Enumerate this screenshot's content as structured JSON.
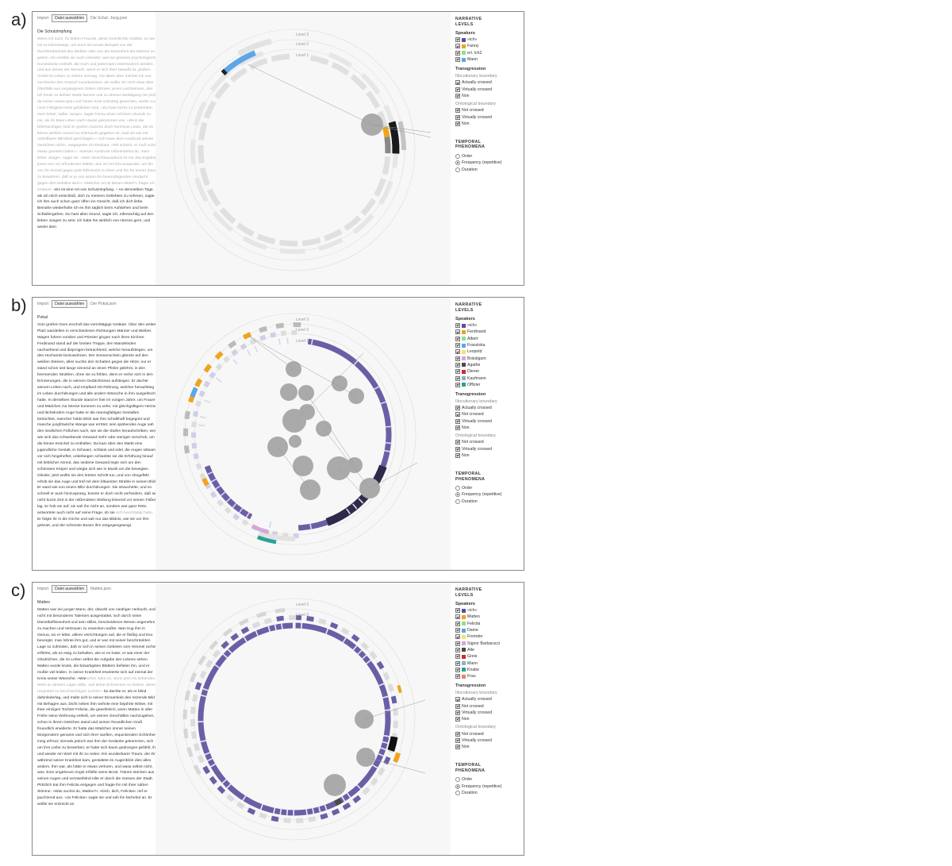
{
  "panels": [
    {
      "label": "a)",
      "import_label": "Import",
      "file_button": "Datei auswählen",
      "file_name": "Die Schut...fung.json",
      "text_title": "Die Schutzimpfung",
      "text_plain": "Wenn ich euch, ihr lieben Freunde, diese Geschichte erzähle, so tue ich es keineswegs, um euch ein neues Beispiel von der Durchtriebenheit des Weibes oder von der Dummheit der Männer zu geben. Ich erzähle sie euch vielmehr, weil sie gewisse psychologische Kunststücke enthüllt, die euch und jedermann interessieren werden und aus denen der Mensch, wenn er sich ihrer bewußt ist, großen Vorteil im Leben zu ziehen vermag. Vor allem aber möchte ich von vornherein den Vorwurf zurückweisen, als wollte ich mich etwa über Überfälle aus vergangenen Zeiten rühmen; jenes Leichtsinnes, den ich heute zu tiefster Seele bereue und zu dessen Betätigung mir jetzt, da meine Haare grau und meine Knie schlottrig geworden, weder Lust noch Fähigkeit mehr geblieben sind. »Du hast nichts zu befürchten, mein lieber, süßer Junge«, sagte Fanny eines schönen Abends zu mir, als ihr Mann eben nach Hause gekommen war, »denn die Eifersüchtigen sind im großen Ganzen doch harmlose Leute, die es keiner wirklich Grund zur Eifersucht gegeben ist, sind sie wie mit unheilbarer Blindheit geschlagen.« »Ich traue dem Ausdruck seines Gesichtes nicht«, entgegnete ich kleinlaut. »Mir scheint, er muß schon etwas gemerkt haben.« »Diesen Ausdruck mißverstehst du, mein lieber Junge«, sagte sie. »Sein Gesichtsausdruck ist nur das Ergebnis jenes von mir erfundenen Mittels, das ich bei ihm anwandte, um ihn von Ihr einmal gegen jede Eifersucht zu feien und ihn für immer davor zu bewahren, daß er je von einem ihn beunruhigenden Verdacht gegen dich befallen wird.« »Welcher Art ist dieses Mittel?« fragte ich erstaunt.",
      "text_highlight": "»Es ist",
      "text_after": " eine Art von Schutzimpfung. – An demselben Tage, als ich mich entschloß, dich zu meinem Geliebten zu nehmen, sagte ich ihm auch schon ganz offen ins Gesicht, daß ich dich liebe. Beinahe wiederholte ich es ihm täglich beim Aufstehen und beim Schlafengehen. Du hast allen Grund, sagte ich, eifersüchtig auf den lieben Jungen zu sein; ich habe ihn wirklich von Herzen gern, und weder dein",
      "levels": [
        "Level 3",
        "Level 2",
        "Level 1"
      ]
    },
    {
      "label": "b)",
      "import_label": "Import",
      "file_button": "Datei auswählen",
      "file_name": "Der Pokal.json",
      "text_title": "Pokal",
      "text_plain": "Vom großen Dom erscholl das vormittägige Geläute. Über den weiten Platz wandelten in verschiedenen Richtungen Männer und Weiber, Wagen fuhren vorüber und Priester gingen nach ihren Kirchen. Ferdinand stand auf der breiten Treppe, den Wandelnden nachsehend und diejenigen betrachtend, welche heraufstiegen, um den Hochamte beizuwohnen. Der Sonnenschein glänzte auf den weißen Steinen, alles suchte den Schatten gegen die Hitze; nur er stand schon seit lange sinnend an einen Pfeiler gelehnt, in den brennenden Strahlen, ohne sie zu fühlen, denn er verlor sich in den Erinnerungen, die in seinem Gedächtnisse aufstiegen. Er dachte seinem Leben nach, und empfand mit Rührung, welcher heraufstieg im Leben durchdrungen und alle andern Wünsche in ihm ausgelöscht hatte. In derselben Stunde stand er hier im vorigen Jahre, um Frauen und Mädchen zur Messe kommen zu sehn; mit gleichgültigem Herzen und lächelndem Auge hatte er die mannigfaltigen Gestalten betrachtet, mancher holde Blick war ihm schalkhaft begegnet und manche jungfräuliche Wange war errötet; sein spähendes Auge sah den niedlichen Füßchen nach, wie sie die Stufen heraufschritten, weil wie sich das schwebende Gewand mehr oder weniger verschob, um die feinen Knöchel zu enthüllen. Da kam über den Markt eine jugendliche Gestalt, in Schwarz, schlank und edel, die Augen sittsam vor sich hingeheftet, unbefangen schwebte sie die Erhöhung hinauf mit lieblicher Anmut, das seidene Gewand legte sich um den schönsten Körper und wiegte sich wie in Musik um die bewegten Glieder; jetzt wollte sie den letzten Schritt tun, und von ohngefähr erhob sie das Auge und traf mit dem bläuesten Strahle in seinen Blick. Er ward wie von einem Blitz durchdrungen. Sie strauchelte, und so schnell er auch hinzusprang, konnte er doch nicht verhindern, daß sie nicht kurze Zeit in der mißendsten Stellung knieend vor seinen Füßen lag. Er hob sie auf; sie sah ihn nicht an, sondern war ganz Röte, antwortete auch nicht auf seine Frage, ob sie",
      "text_highlight": "sich beschädigt habe.",
      "text_after": " Er folgte ihr in die Kirche und sah nur das Bildnis, wie sie vor ihm gekniet, und der schönste Busen ihm entgegengewogt.",
      "levels": [
        "Level 3",
        "Level 2",
        "Level 1"
      ]
    },
    {
      "label": "c)",
      "import_label": "Import",
      "file_button": "Datei auswählen",
      "file_name": "Matteo.json",
      "text_title": "Matteo",
      "text_plain": "Matteo war ein junger Mann, der, obwohl von niedriger Herkunft, und nicht mit besonderen Talenten ausgestattet, sich durch seine Dienstbeflissenheit und sein stilles, bescheidenes Wesen angenehm zu machen und Vertrauen zu erwecken wußte. Man trug ihm in Genua, wo er lebte, allerei Verrichtungen auf, die er fleißig und treu besorgte; man lohnte ihm gut, und er war mit seiner beschränkten Lage so zufrieden, daß er sich in seinen Gebeten vom Himmel nichts erflehte, als es ewig zu behalten, wie er es hatte; er war einer der Glücklichen, die im Leben selbst die Aufgabe des Lebens sehen. Matteo wurde krank, die bösartigsten Blattern befielen ihn, und er mußte viel leiden. In seiner Krankheit erweiterte sich auf einmal der Kreis seiner Wünsche. »Wie",
      "text_highlight": "schön wäre es, wenn jetzt ein liebendes Weib an deinem Lager säße, und deine Schmerzen zu lindern, deine Ungeduld zu beschwichtigen suchte!«",
      "text_after": " So dachte er, als er blind dahinlederlag, und malte sich in seiner Einsamkeit den reizende Bild mit Behagen aus. Dicht neben ihm wohnte eine bejahrte Witwe, mit ihrer einzigen Tochter Felicita, die gewöhnlich, wenn Matteo in aller Frühe seine Wohnung verließ, um seinen Geschäften nachzugehen, schon in ihrem Gärtchen stand und seinen freundlichen Gruß freundlich erwiderte. Er hatte das Mädchen immer seinen Morgenstern genannt und sich ihrer sanften, erquickenden Schönheit innig erfreut; niemals jedoch war ihm der Gedanke gekommen, sich um ihre Liebe zu bewerben; er hatte sich kaum gedrungen gefühlt, ihn und wieder ein Wort mit ihr zu reden. Ein wunderbarer Traum, der ihm während seiner Krankheit kam, gestaltete im Augenblick dies alles anders. Ihm war, als hätte er etwas verloren, und wasa selbst nicht, was. Eine ungeheure Angst erfüllte seine Brust. Tränen stürzten aus seinen Augen und verzweifelnd eilte er durch die Gassen der Stadt. Plötzlich trat ihm Felicita entgegen und fragte ihn mit ihrer süßen Stimme: »Was suchst du, Matteo?« »Dich, dich, Felicita!« rief er jauchzend aus. »Ja Felicita!« sagte sie und sah ihn lächelnd an. Er wollte sie entzückt an",
      "levels": [
        "Level 3",
        "Level 2",
        "Level 1"
      ]
    }
  ],
  "sidebar": {
    "narrative_heading_1": "NARRATIVE",
    "narrative_heading_2": "LEVELS",
    "speakers_label": "Speakers",
    "transgression_label": "Transgression",
    "illocutionary_label": "Illocutionary boundary",
    "ontological_label": "Ontological boundary",
    "temporal_heading_1": "TEMPORAL",
    "temporal_heading_2": "PHENOMENA",
    "illocutionary_options": [
      "Actually crossed",
      "Virtually crossed",
      "Non"
    ],
    "illocutionary_options_4": [
      "Actually crossed",
      "Not crossed",
      "Virtually crossed",
      "Non"
    ],
    "ontological_options": [
      "Not crossed",
      "Virtually crossed",
      "Non"
    ],
    "temporal_options": [
      "Order",
      "Frequency (repetitive)",
      "Duration"
    ],
    "temporal_selected": "Frequency (repetitive)"
  },
  "speakers_a": [
    {
      "name": "»ich«",
      "color": "#5b4e9c"
    },
    {
      "name": "Fanny",
      "color": "#f0a31b"
    },
    {
      "name": "erl. Ich2",
      "color": "#8fe08f"
    },
    {
      "name": "Mann",
      "color": "#5ea6e6"
    }
  ],
  "speakers_b": [
    {
      "name": "»ich«",
      "color": "#5b4e9c"
    },
    {
      "name": "Ferdinand",
      "color": "#f0a31b"
    },
    {
      "name": "Albert",
      "color": "#8fe08f"
    },
    {
      "name": "Franziska",
      "color": "#5ea6e6"
    },
    {
      "name": "Leopold",
      "color": "#f1e36c"
    },
    {
      "name": "Bräutigam",
      "color": "#d8a6d8"
    },
    {
      "name": "Agathe",
      "color": "#4a4a4a"
    },
    {
      "name": "Diener",
      "color": "#d22b2b"
    },
    {
      "name": "Kaufmann",
      "color": "#8fb0c8"
    },
    {
      "name": "Offizier",
      "color": "#2aa198"
    }
  ],
  "speakers_c": [
    {
      "name": "»ich«",
      "color": "#5b4e9c"
    },
    {
      "name": "Matteo",
      "color": "#f0a31b"
    },
    {
      "name": "Felicita",
      "color": "#8fe08f"
    },
    {
      "name": "Dame",
      "color": "#5ea6e6"
    },
    {
      "name": "Fremder",
      "color": "#f1e36c"
    },
    {
      "name": "Signor Barbarucci",
      "color": "#d8a6d8"
    },
    {
      "name": "Alte",
      "color": "#4a4a4a"
    },
    {
      "name": "Greis",
      "color": "#d22b2b"
    },
    {
      "name": "Mann",
      "color": "#8fb0c8"
    },
    {
      "name": "Knabe",
      "color": "#2aa198"
    },
    {
      "name": "Frau",
      "color": "#f08070"
    }
  ]
}
